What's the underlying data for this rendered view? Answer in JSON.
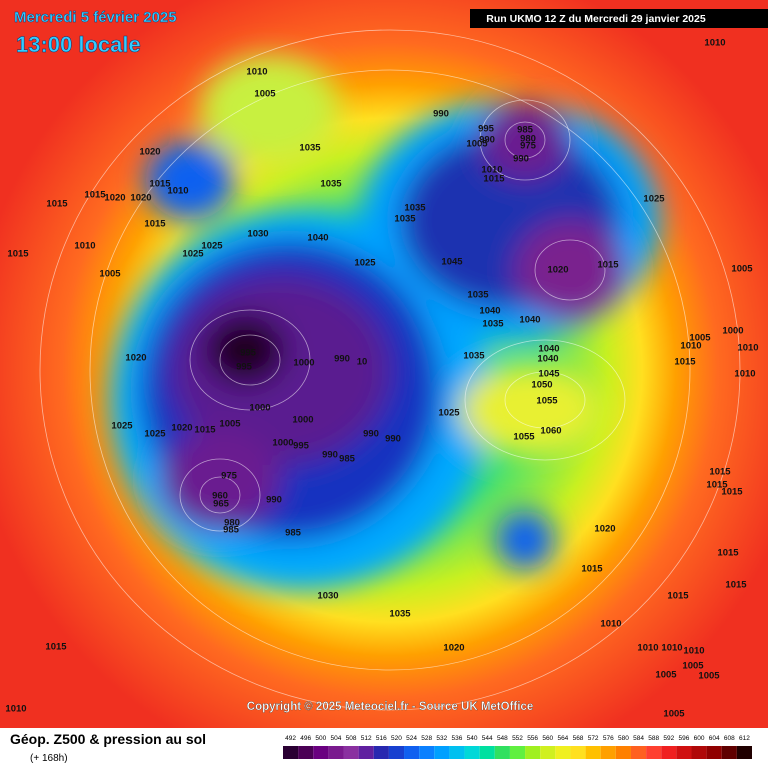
{
  "header": {
    "date": "Mercredi 5 février 2025",
    "time": "13:00 locale",
    "run": "Run UKMO 12 Z du Mercredi 29 janvier 2025"
  },
  "copyright": "Copyright © 2025 Meteociel.fr - Source UK MetOffice",
  "legend": {
    "title": "Géop. Z500 & pression au sol",
    "lead": "(+ 168h)",
    "values": [
      492,
      496,
      500,
      504,
      508,
      512,
      516,
      520,
      524,
      528,
      532,
      536,
      540,
      544,
      548,
      552,
      556,
      560,
      564,
      568,
      572,
      576,
      580,
      584,
      588,
      592,
      596,
      600,
      604,
      608,
      612
    ],
    "colors": [
      "#2a0033",
      "#4b0055",
      "#6a0080",
      "#7a1a8e",
      "#8a30a0",
      "#6020a0",
      "#2828b0",
      "#1840d0",
      "#1060f0",
      "#0a80ff",
      "#00a0ff",
      "#00c0f0",
      "#00d8d8",
      "#00e0a0",
      "#30e060",
      "#60f040",
      "#a0f020",
      "#d0f020",
      "#f0f020",
      "#ffe020",
      "#ffc000",
      "#ffa000",
      "#ff8000",
      "#ff6020",
      "#ff4030",
      "#f02020",
      "#d01010",
      "#b00808",
      "#900000",
      "#600000",
      "#200000"
    ]
  },
  "isobar_labels": [
    1010,
    1010,
    1005,
    990,
    995,
    985,
    980,
    975,
    990,
    1005,
    990,
    1035,
    1020,
    1015,
    1010,
    1015,
    1015,
    1020,
    1020,
    1035,
    1010,
    1015,
    1035,
    1035,
    1025,
    1015,
    1025,
    1025,
    1030,
    1040,
    1010,
    1015,
    1025,
    1045,
    1020,
    1015,
    1005,
    1005,
    1035,
    1040,
    1035,
    1040,
    1040,
    1040,
    1005,
    1000,
    1010,
    1010,
    1035,
    1020,
    995,
    995,
    1000,
    990,
    10,
    1045,
    1050,
    1015,
    1010,
    1055,
    1000,
    1025,
    1005,
    1000,
    1025,
    1025,
    1020,
    1015,
    1060,
    1055,
    990,
    990,
    1000,
    995,
    990,
    985,
    1015,
    1015,
    1015,
    975,
    960,
    965,
    990,
    980,
    985,
    985,
    1020,
    1015,
    1015,
    1030,
    1035,
    1010,
    1015,
    1015,
    1015,
    1020,
    1010,
    1010,
    1010,
    1005,
    1005,
    1005,
    1005,
    1010
  ]
}
